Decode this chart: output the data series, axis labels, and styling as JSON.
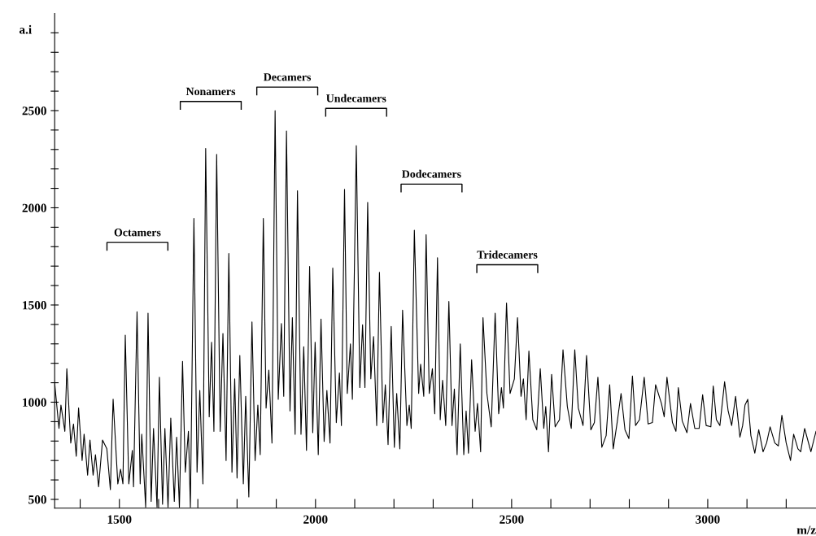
{
  "chart_data": {
    "type": "line",
    "xlabel": "m/z",
    "ylabel": "a.i",
    "xlim": [
      1335,
      3276
    ],
    "ylim": [
      455,
      3000
    ],
    "xticks": [
      {
        "value": 1400,
        "label": null
      },
      1500,
      {
        "value": 1600,
        "label": null
      },
      {
        "value": 1700,
        "label": null
      },
      {
        "value": 1800,
        "label": null
      },
      {
        "value": 1900,
        "label": null
      },
      2000,
      {
        "value": 2100,
        "label": null
      },
      {
        "value": 2200,
        "label": null
      },
      {
        "value": 2300,
        "label": null
      },
      {
        "value": 2400,
        "label": null
      },
      2500,
      {
        "value": 2600,
        "label": null
      },
      {
        "value": 2700,
        "label": null
      },
      {
        "value": 2800,
        "label": null
      },
      {
        "value": 2900,
        "label": null
      },
      3000,
      {
        "value": 3100,
        "label": null
      },
      {
        "value": 3200,
        "label": null
      }
    ],
    "yticks": [
      500,
      {
        "value": 600,
        "label": null
      },
      {
        "value": 700,
        "label": null
      },
      {
        "value": 800,
        "label": null
      },
      {
        "value": 900,
        "label": null
      },
      1000,
      {
        "value": 1100,
        "label": null
      },
      {
        "value": 1200,
        "label": null
      },
      {
        "value": 1300,
        "label": null
      },
      {
        "value": 1400,
        "label": null
      },
      1500,
      {
        "value": 1600,
        "label": null
      },
      {
        "value": 1700,
        "label": null
      },
      {
        "value": 1800,
        "label": null
      },
      {
        "value": 1900,
        "label": null
      },
      2000,
      {
        "value": 2100,
        "label": null
      },
      {
        "value": 2200,
        "label": null
      },
      {
        "value": 2300,
        "label": null
      },
      {
        "value": 2400,
        "label": null
      },
      2500,
      {
        "value": 2600,
        "label": null
      },
      {
        "value": 2700,
        "label": null
      },
      {
        "value": 2800,
        "label": null
      },
      {
        "value": 2900,
        "label": null
      }
    ],
    "grid": false,
    "marker": "none",
    "line_style": "solid",
    "annotations": [
      "Octamers",
      "Nonamers",
      "Decamers",
      "Undecamers",
      "Dodecamers",
      "Tridecamers"
    ],
    "series": [
      {
        "color": "#000000",
        "x": [
          1335,
          1346,
          1351,
          1361,
          1366,
          1376,
          1383,
          1390,
          1396,
          1405,
          1410,
          1419,
          1425,
          1433,
          1439,
          1447,
          1457,
          1468,
          1477,
          1484,
          1496,
          1503,
          1509,
          1515,
          1524,
          1533,
          1536,
          1545,
          1553,
          1557,
          1567,
          1573,
          1581,
          1587,
          1596,
          1602,
          1610,
          1616,
          1624,
          1631,
          1640,
          1646,
          1653,
          1661,
          1668,
          1676,
          1681,
          1690,
          1698,
          1705,
          1713,
          1720,
          1729,
          1735,
          1741,
          1748,
          1757,
          1764,
          1772,
          1779,
          1787,
          1794,
          1800,
          1807,
          1816,
          1822,
          1830,
          1838,
          1846,
          1853,
          1859,
          1867,
          1874,
          1881,
          1889,
          1897,
          1905,
          1913,
          1919,
          1926,
          1935,
          1941,
          1948,
          1954,
          1963,
          1970,
          1977,
          1985,
          1993,
          1999,
          2007,
          2014,
          2022,
          2029,
          2037,
          2044,
          2053,
          2061,
          2066,
          2074,
          2081,
          2089,
          2094,
          2104,
          2113,
          2120,
          2126,
          2133,
          2141,
          2148,
          2156,
          2163,
          2172,
          2178,
          2185,
          2193,
          2201,
          2207,
          2215,
          2222,
          2233,
          2239,
          2244,
          2252,
          2263,
          2268,
          2276,
          2282,
          2290,
          2298,
          2304,
          2311,
          2318,
          2324,
          2332,
          2340,
          2348,
          2354,
          2361,
          2369,
          2378,
          2384,
          2390,
          2398,
          2407,
          2413,
          2421,
          2427,
          2437,
          2448,
          2458,
          2467,
          2474,
          2479,
          2487,
          2496,
          2507,
          2515,
          2524,
          2530,
          2537,
          2544,
          2554,
          2564,
          2573,
          2582,
          2587,
          2594,
          2602,
          2611,
          2622,
          2631,
          2642,
          2652,
          2661,
          2670,
          2682,
          2691,
          2702,
          2711,
          2720,
          2730,
          2741,
          2750,
          2759,
          2769,
          2779,
          2789,
          2799,
          2808,
          2816,
          2826,
          2838,
          2848,
          2859,
          2867,
          2882,
          2889,
          2896,
          2910,
          2919,
          2925,
          2935,
          2947,
          2956,
          2967,
          2978,
          2987,
          2996,
          3008,
          3014,
          3022,
          3031,
          3043,
          3052,
          3061,
          3071,
          3082,
          3089,
          3095,
          3102,
          3110,
          3120,
          3130,
          3141,
          3150,
          3159,
          3171,
          3180,
          3189,
          3200,
          3211,
          3219,
          3230,
          3237,
          3247,
          3263,
          3276
        ],
        "values": [
          1098,
          865,
          985,
          850,
          1172,
          790,
          888,
          722,
          970,
          700,
          835,
          625,
          805,
          625,
          730,
          565,
          805,
          760,
          550,
          1015,
          580,
          655,
          580,
          1345,
          580,
          752,
          565,
          1465,
          580,
          835,
          460,
          1458,
          490,
          865,
          460,
          1128,
          475,
          865,
          460,
          918,
          490,
          820,
          460,
          1210,
          640,
          850,
          460,
          1945,
          640,
          1060,
          580,
          2305,
          925,
          1308,
          850,
          2275,
          850,
          1353,
          700,
          1765,
          640,
          1120,
          610,
          1240,
          580,
          1030,
          513,
          1413,
          700,
          985,
          730,
          1945,
          970,
          1165,
          790,
          2500,
          1015,
          1405,
          1030,
          2395,
          955,
          1435,
          835,
          2088,
          835,
          1285,
          752,
          1698,
          843,
          1308,
          730,
          1428,
          798,
          1060,
          790,
          1690,
          895,
          1150,
          880,
          2095,
          1045,
          1300,
          1015,
          2320,
          1075,
          1398,
          1075,
          2028,
          1120,
          1338,
          880,
          1668,
          895,
          1090,
          782,
          1390,
          768,
          1045,
          760,
          1473,
          880,
          985,
          865,
          1885,
          1045,
          1195,
          1030,
          1862,
          1045,
          1172,
          940,
          1743,
          910,
          1113,
          880,
          1518,
          880,
          1068,
          730,
          1300,
          730,
          955,
          738,
          1218,
          850,
          993,
          745,
          1435,
          1045,
          873,
          1458,
          940,
          1075,
          970,
          1510,
          1045,
          1120,
          1435,
          1030,
          1120,
          910,
          1263,
          910,
          858,
          1172,
          865,
          978,
          745,
          1143,
          873,
          910,
          1270,
          978,
          865,
          1270,
          970,
          880,
          1240,
          858,
          895,
          1128,
          768,
          828,
          1090,
          760,
          895,
          1045,
          858,
          813,
          1135,
          880,
          910,
          1128,
          888,
          895,
          1090,
          993,
          925,
          1128,
          895,
          850,
          1075,
          903,
          843,
          993,
          865,
          865,
          1038,
          880,
          873,
          1083,
          910,
          880,
          1105,
          955,
          880,
          1030,
          820,
          880,
          985,
          1015,
          828,
          738,
          858,
          745,
          790,
          873,
          790,
          775,
          933,
          790,
          700,
          835,
          760,
          745,
          865,
          745,
          850
        ]
      }
    ]
  }
}
